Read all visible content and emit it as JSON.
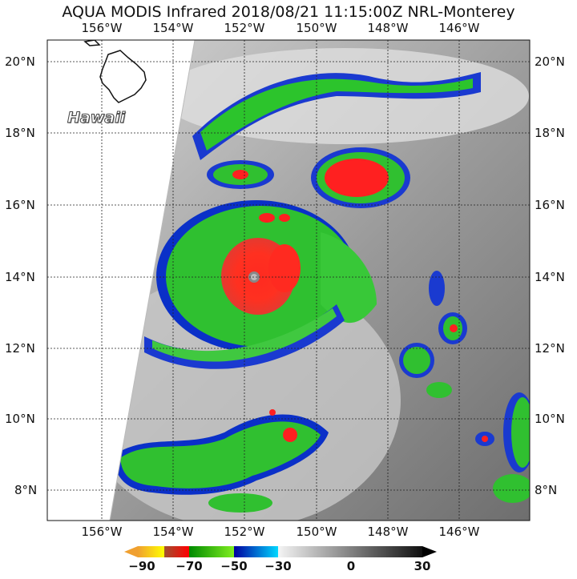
{
  "title": "AQUA MODIS Infrared 2018/08/21 11:15:00Z NRL-Monterey",
  "map": {
    "longitude_labels": [
      "156°W",
      "154°W",
      "152°W",
      "150°W",
      "148°W",
      "146°W"
    ],
    "latitude_labels": [
      "20°N",
      "18°N",
      "16°N",
      "14°N",
      "12°N",
      "10°N",
      "8°N"
    ],
    "place_label": "Hawaii",
    "gridlines": true
  },
  "colorbar": {
    "tick_labels": [
      "−90",
      "−70",
      "−50",
      "−30",
      "0",
      "30"
    ],
    "colors": {
      "cold_min": "#f0a030",
      "yellow": "#ffff00",
      "red": "#ff1010",
      "green": "#20b020",
      "blue": "#0010c0",
      "cyan": "#00d0ff",
      "white": "#f0f0f0",
      "black": "#000000"
    }
  }
}
